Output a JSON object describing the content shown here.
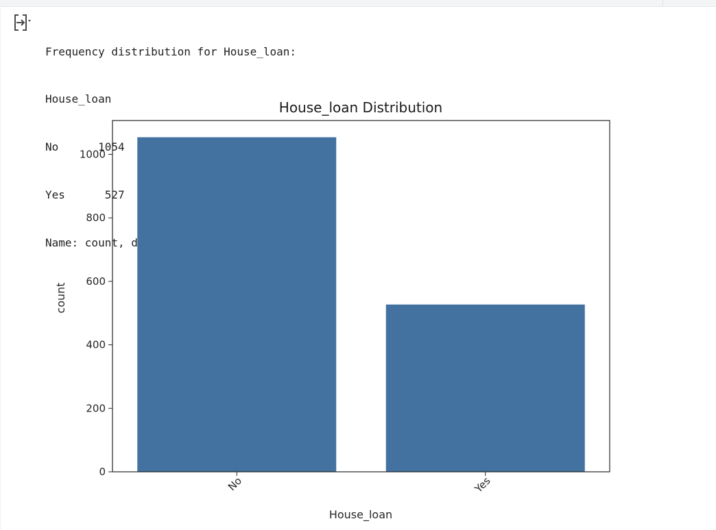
{
  "output": {
    "toggle_icon": "output-toggle-icon",
    "lines": {
      "header": "Frequency distribution for House_loan:",
      "index_name": "House_loan",
      "row_no": "No      1054",
      "row_yes": "Yes      527",
      "footer": "Name: count, dtype: int64"
    }
  },
  "chart_data": {
    "type": "bar",
    "title": "House_loan Distribution",
    "xlabel": "House_loan",
    "ylabel": "count",
    "categories": [
      "No",
      "Yes"
    ],
    "values": [
      1054,
      527
    ],
    "ylim": [
      0,
      1106.7
    ],
    "yticks": [
      0,
      200,
      400,
      600,
      800,
      1000
    ],
    "bar_color": "#4372a0",
    "grid": false
  }
}
